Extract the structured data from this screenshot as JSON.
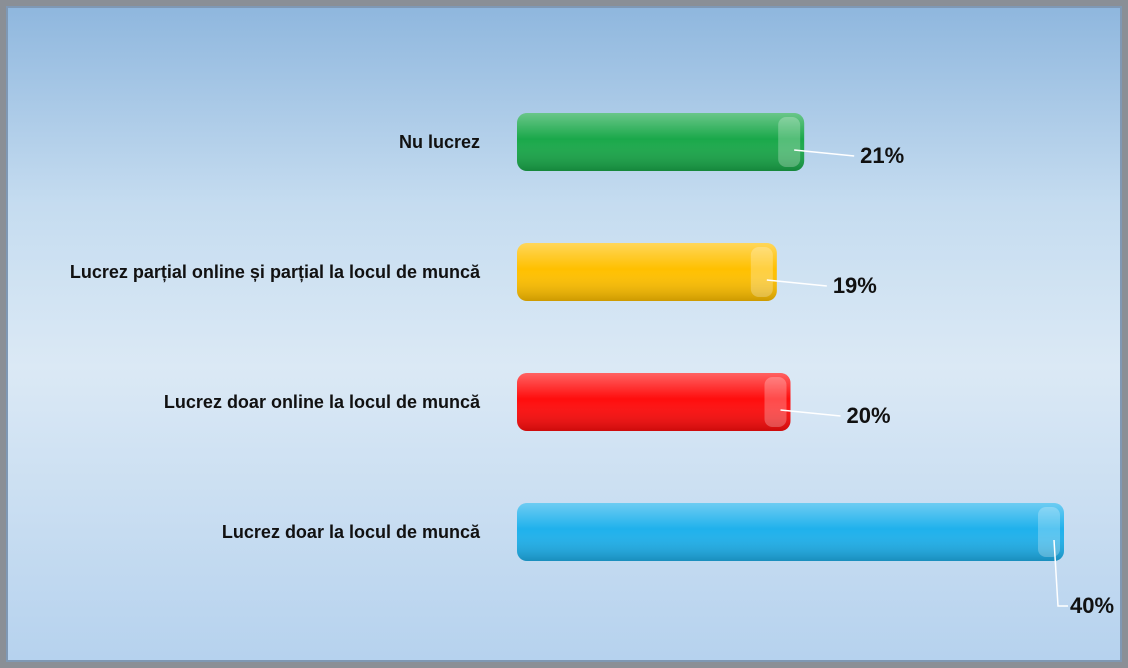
{
  "chart_data": {
    "type": "bar",
    "orientation": "horizontal",
    "categories": [
      "Nu lucrez",
      "Lucrez parțial online și parțial la locul de muncă",
      "Lucrez doar online la locul de muncă",
      "Lucrez doar la locul de muncă"
    ],
    "values": [
      21,
      19,
      20,
      40
    ],
    "value_labels": [
      "21%",
      "19%",
      "20%",
      "40%"
    ],
    "colors": [
      "#1aa84a",
      "#ffc000",
      "#ff0d0d",
      "#1fb1ec"
    ]
  }
}
